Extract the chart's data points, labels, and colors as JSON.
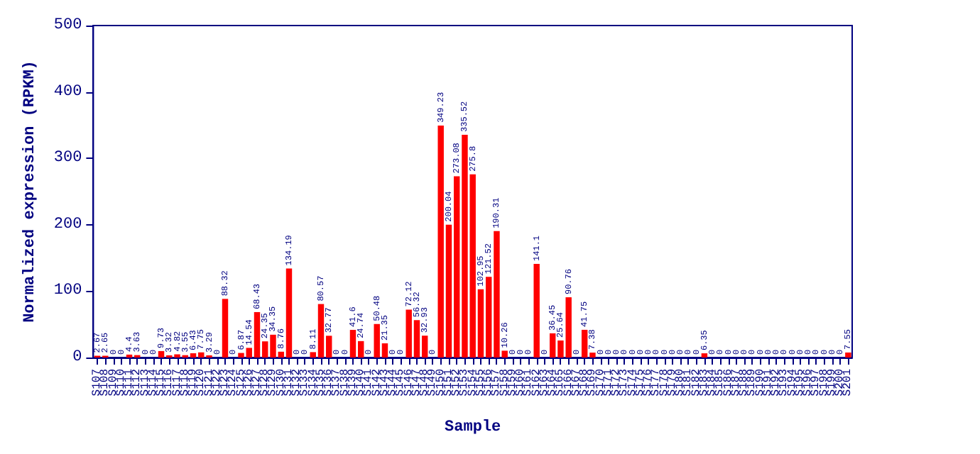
{
  "chart_data": {
    "type": "bar",
    "xlabel": "Sample",
    "ylabel": "Normalized expression (RPKM)",
    "categories": [
      "S107",
      "S108",
      "S109",
      "S110",
      "S111",
      "S112",
      "S113",
      "S114",
      "S115",
      "S116",
      "S117",
      "S118",
      "S119",
      "S120",
      "S121",
      "S122",
      "S123",
      "S124",
      "S125",
      "S126",
      "S127",
      "S128",
      "S129",
      "S130",
      "S131",
      "S132",
      "S133",
      "S134",
      "S135",
      "S136",
      "S137",
      "S138",
      "S139",
      "S140",
      "S141",
      "S142",
      "S143",
      "S144",
      "S145",
      "S146",
      "S147",
      "S148",
      "S149",
      "S150",
      "S151",
      "S152",
      "S153",
      "S154",
      "S155",
      "S156",
      "S157",
      "S158",
      "S159",
      "S160",
      "S161",
      "S162",
      "S163",
      "S164",
      "S165",
      "S166",
      "S167",
      "S168",
      "S169",
      "S170",
      "S171",
      "S172",
      "S173",
      "S174",
      "S175",
      "S176",
      "S177",
      "S178",
      "S179",
      "S180",
      "S181",
      "S182",
      "S183",
      "S184",
      "S185",
      "S186",
      "S187",
      "S188",
      "S189",
      "S190",
      "S191",
      "S192",
      "S193",
      "S194",
      "S195",
      "S196",
      "S197",
      "S198",
      "S199",
      "S200",
      "S201"
    ],
    "values": [
      2.67,
      2.65,
      0,
      0,
      4.4,
      3.63,
      0,
      0,
      9.73,
      3.32,
      4.82,
      3.55,
      6.43,
      7.75,
      3.29,
      0,
      88.32,
      0,
      6.87,
      14.54,
      68.43,
      24.35,
      34.35,
      8.76,
      134.19,
      0,
      0,
      8.11,
      80.57,
      32.77,
      0,
      0,
      41.6,
      24.74,
      0,
      50.48,
      21.35,
      0,
      0,
      72.12,
      56.32,
      32.93,
      0,
      349.23,
      200.04,
      273.08,
      335.52,
      275.8,
      102.95,
      121.52,
      190.31,
      10.26,
      0,
      0,
      0,
      141.1,
      0,
      36.45,
      25.64,
      90.76,
      0,
      41.75,
      7.38,
      0,
      0,
      0,
      0,
      0,
      0,
      0,
      0,
      0,
      0,
      0,
      0,
      0,
      6.35,
      0,
      0,
      0,
      0,
      0,
      0,
      0,
      0,
      0,
      0,
      0,
      0,
      0,
      0,
      0,
      0,
      0,
      7.55
    ],
    "color": "#ff0000",
    "ylim": [
      0,
      500
    ],
    "yticks": [
      0,
      100,
      200,
      300,
      400,
      500
    ],
    "grid": false,
    "data_labels": true
  }
}
